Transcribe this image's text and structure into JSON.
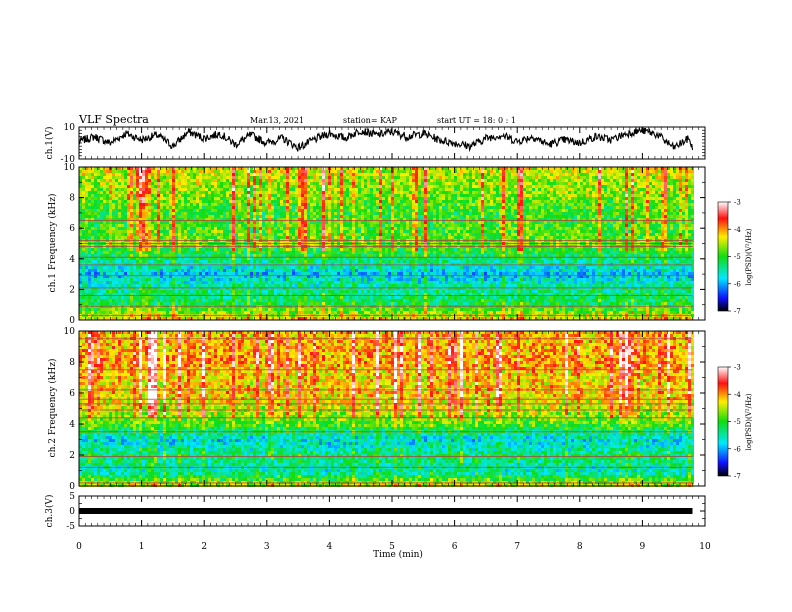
{
  "header": {
    "title": "VLF Spectra",
    "date": "Mar.13, 2021",
    "station": "station= KAP",
    "start": "start UT =  18: 0 : 1"
  },
  "chart_data": [
    {
      "type": "line",
      "panel": "ch1-waveform",
      "ylabel": "ch.1(V)",
      "ylim": [
        -10,
        10
      ],
      "yticks": [
        "10",
        "-10"
      ],
      "x": [
        0.0,
        0.25,
        0.5,
        0.75,
        1.0,
        1.25,
        1.5,
        1.75,
        2.0,
        2.25,
        2.5,
        2.75,
        3.0,
        3.25,
        3.5,
        3.75,
        4.0,
        4.25,
        4.5,
        4.75,
        5.0,
        5.25,
        5.5,
        5.75,
        6.0,
        6.25,
        6.5,
        6.75,
        7.0,
        7.25,
        7.5,
        7.75,
        8.0,
        8.25,
        8.5,
        8.75,
        9.0,
        9.25,
        9.5,
        9.75,
        9.8
      ],
      "y": [
        1,
        4,
        0,
        6,
        2,
        5,
        -2,
        7,
        3,
        6,
        -1,
        5,
        0,
        3,
        -3,
        2,
        6,
        3,
        8,
        5,
        7,
        4,
        6,
        2,
        0,
        -2,
        3,
        5,
        1,
        4,
        -1,
        2,
        0,
        4,
        2,
        6,
        8,
        5,
        -3,
        3,
        -4
      ],
      "color": "#000000"
    },
    {
      "type": "heatmap",
      "panel": "ch1-spectrogram",
      "ylabel": "ch.1 Frequency (kHz)",
      "ylim": [
        0,
        10
      ],
      "xlim": [
        0,
        10
      ],
      "yticks": [
        "0",
        "2",
        "4",
        "6",
        "8",
        "10"
      ],
      "colorbar": {
        "label": "log(PSD)(V²/Hz)",
        "ticks": [
          "-3",
          "-4",
          "-5",
          "-6",
          "-7"
        ],
        "range": [
          -7,
          -3
        ]
      },
      "bands_khz": [
        0.3,
        0.9,
        1.6,
        2.1,
        2.9,
        3.6,
        4.1,
        4.8,
        5.0,
        5.2,
        6.5
      ],
      "profile_khz": [
        0,
        1,
        2,
        3,
        4,
        5,
        6,
        7,
        8,
        9,
        10
      ],
      "profile_log_psd": [
        -4.2,
        -5.2,
        -5.4,
        -5.9,
        -5.3,
        -4.8,
        -4.9,
        -5.0,
        -4.7,
        -4.6,
        -4.4
      ]
    },
    {
      "type": "heatmap",
      "panel": "ch2-spectrogram",
      "ylabel": "ch.2 Frequency (kHz)",
      "ylim": [
        0,
        10
      ],
      "xlim": [
        0,
        10
      ],
      "yticks": [
        "0",
        "2",
        "4",
        "6",
        "8",
        "10"
      ],
      "colorbar": {
        "label": "log(PSD)(V²/Hz)",
        "ticks": [
          "-3",
          "-4",
          "-5",
          "-6",
          "-7"
        ],
        "range": [
          -7,
          -3
        ]
      },
      "bands_khz": [
        0.2,
        1.2,
        1.9,
        3.5,
        4.4,
        4.9,
        5.3,
        5.6,
        6.2,
        7.5,
        9.5
      ],
      "profile_khz": [
        0,
        1,
        2,
        3,
        4,
        5,
        6,
        7,
        8,
        9,
        10
      ],
      "profile_log_psd": [
        -4.4,
        -5.6,
        -5.3,
        -5.8,
        -4.9,
        -4.5,
        -4.2,
        -4.3,
        -4.0,
        -4.1,
        -4.2
      ]
    },
    {
      "type": "line",
      "panel": "ch3-waveform",
      "ylabel": "ch.3(V)",
      "ylim": [
        -5,
        5
      ],
      "yticks": [
        "5",
        "0",
        "-5"
      ],
      "x": [
        0,
        9.8
      ],
      "y": [
        0,
        0
      ],
      "color": "#000000"
    },
    {
      "type": "axis",
      "panel": "time-axis",
      "xlabel": "Time (min)",
      "xlim": [
        0,
        10
      ],
      "xticks": [
        "0",
        "1",
        "2",
        "3",
        "4",
        "5",
        "6",
        "7",
        "8",
        "9",
        "10"
      ]
    }
  ]
}
